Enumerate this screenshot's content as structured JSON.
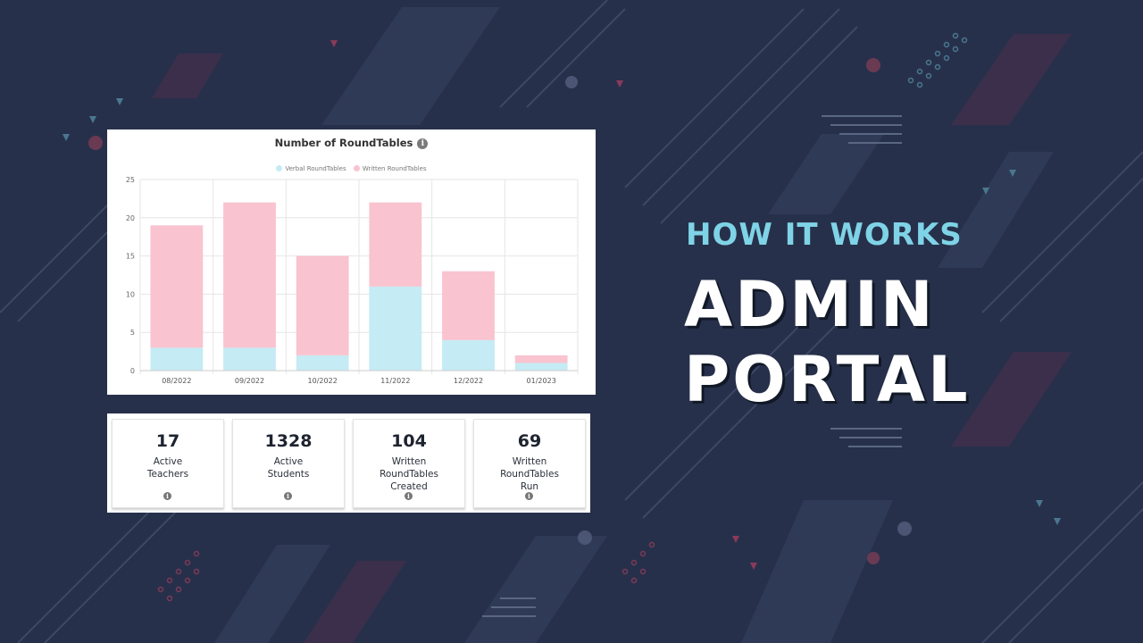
{
  "heading": {
    "kicker": "HOW IT WORKS",
    "title_line1": "ADMIN",
    "title_line2": "PORTAL"
  },
  "chart": {
    "title": "Number of RoundTables",
    "info_icon": "i"
  },
  "chart_data": {
    "type": "bar",
    "stacked": true,
    "categories": [
      "08/2022",
      "09/2022",
      "10/2022",
      "11/2022",
      "12/2022",
      "01/2023"
    ],
    "series": [
      {
        "name": "Verbal RoundTables",
        "color": "#c5ebf4",
        "values": [
          3,
          3,
          2,
          11,
          4,
          1
        ]
      },
      {
        "name": "Written RoundTables",
        "color": "#f9c3cf",
        "values": [
          16,
          19,
          13,
          11,
          9,
          1
        ]
      }
    ],
    "ylim": [
      0,
      25
    ],
    "yticks": [
      0,
      5,
      10,
      15,
      20,
      25
    ],
    "grid": true,
    "legend": "top"
  },
  "stats": [
    {
      "value": "17",
      "label": "Active\nTeachers",
      "icon": "info-icon"
    },
    {
      "value": "1328",
      "label": "Active\nStudents",
      "icon": "info-icon"
    },
    {
      "value": "104",
      "label": "Written\nRoundTables\nCreated",
      "icon": "info-icon"
    },
    {
      "value": "69",
      "label": "Written\nRoundTables\nRun",
      "icon": "info-icon"
    }
  ],
  "colors": {
    "background": "#27304a",
    "accent": "#7fd3e6",
    "verbal": "#c5ebf4",
    "written": "#f9c3cf"
  }
}
